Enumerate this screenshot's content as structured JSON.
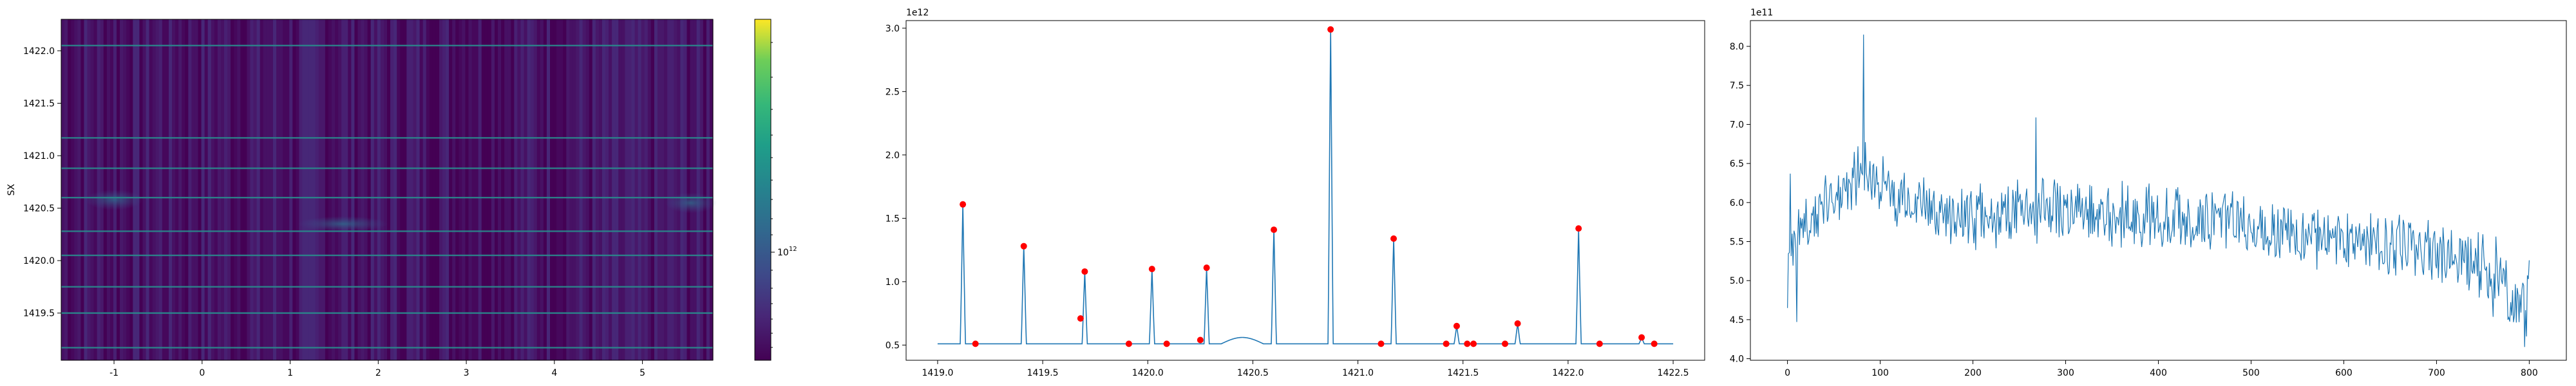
{
  "chart_data": [
    {
      "type": "heatmap",
      "ylabel": "SX",
      "xlim": [
        -1.6,
        5.8
      ],
      "ylim": [
        1419.05,
        1422.3
      ],
      "xticks": [
        -1,
        0,
        1,
        2,
        3,
        4,
        5
      ],
      "yticks": [
        1419.5,
        1420.0,
        1420.5,
        1421.0,
        1421.5,
        1422.0
      ],
      "ytick_labels": [
        "1419.5",
        "1420.0",
        "1420.5",
        "1421.0",
        "1421.5",
        "1422.0"
      ],
      "bright_rows_y": [
        1419.17,
        1419.5,
        1419.75,
        1420.05,
        1420.28,
        1420.6,
        1420.88,
        1421.17,
        1422.05
      ],
      "colormap": "viridis",
      "colorbar": {
        "scale": "log",
        "tick_label": "10",
        "tick_exponent": "12"
      }
    },
    {
      "type": "line",
      "offset_label": "1e12",
      "xlim": [
        1418.85,
        1422.65
      ],
      "ylim": [
        0.38,
        3.06
      ],
      "xticks": [
        1419.0,
        1419.5,
        1420.0,
        1420.5,
        1421.0,
        1421.5,
        1422.0,
        1422.5
      ],
      "xtick_labels": [
        "1419.0",
        "1419.5",
        "1420.0",
        "1420.5",
        "1421.0",
        "1421.5",
        "1422.0",
        "1422.5"
      ],
      "yticks": [
        0.5,
        1.0,
        1.5,
        2.0,
        2.5,
        3.0
      ],
      "ytick_labels": [
        "0.5",
        "1.0",
        "1.5",
        "2.0",
        "2.5",
        "3.0"
      ],
      "baseline": 0.51,
      "peaks": [
        {
          "x": 1419.12,
          "y": 1.61
        },
        {
          "x": 1419.41,
          "y": 1.28
        },
        {
          "x": 1419.7,
          "y": 1.08
        },
        {
          "x": 1420.02,
          "y": 1.1
        },
        {
          "x": 1420.28,
          "y": 1.11
        },
        {
          "x": 1420.6,
          "y": 1.41
        },
        {
          "x": 1420.87,
          "y": 2.99
        },
        {
          "x": 1421.17,
          "y": 1.34
        },
        {
          "x": 1421.47,
          "y": 0.65
        },
        {
          "x": 1421.76,
          "y": 0.67
        },
        {
          "x": 1422.05,
          "y": 1.42
        },
        {
          "x": 1422.35,
          "y": 0.56
        }
      ],
      "markers": [
        {
          "x": 1419.12,
          "y": 1.61
        },
        {
          "x": 1419.18,
          "y": 0.51
        },
        {
          "x": 1419.41,
          "y": 1.28
        },
        {
          "x": 1419.68,
          "y": 0.71
        },
        {
          "x": 1419.7,
          "y": 1.08
        },
        {
          "x": 1419.91,
          "y": 0.51
        },
        {
          "x": 1420.02,
          "y": 1.1
        },
        {
          "x": 1420.09,
          "y": 0.51
        },
        {
          "x": 1420.25,
          "y": 0.54
        },
        {
          "x": 1420.28,
          "y": 1.11
        },
        {
          "x": 1420.6,
          "y": 1.41
        },
        {
          "x": 1420.87,
          "y": 2.99
        },
        {
          "x": 1421.11,
          "y": 0.51
        },
        {
          "x": 1421.17,
          "y": 1.34
        },
        {
          "x": 1421.42,
          "y": 0.51
        },
        {
          "x": 1421.47,
          "y": 0.65
        },
        {
          "x": 1421.52,
          "y": 0.51
        },
        {
          "x": 1421.55,
          "y": 0.51
        },
        {
          "x": 1421.7,
          "y": 0.51
        },
        {
          "x": 1421.76,
          "y": 0.67
        },
        {
          "x": 1422.05,
          "y": 1.42
        },
        {
          "x": 1422.15,
          "y": 0.51
        },
        {
          "x": 1422.35,
          "y": 0.56
        },
        {
          "x": 1422.41,
          "y": 0.51
        }
      ],
      "line_color": "#1f77b4",
      "marker_color": "#ff0000"
    },
    {
      "type": "line",
      "offset_label": "1e11",
      "xlim": [
        -40,
        840
      ],
      "ylim": [
        3.98,
        8.33
      ],
      "xticks": [
        0,
        100,
        200,
        300,
        400,
        500,
        600,
        700,
        800
      ],
      "xtick_labels": [
        "0",
        "100",
        "200",
        "300",
        "400",
        "500",
        "600",
        "700",
        "800"
      ],
      "yticks": [
        4.0,
        4.5,
        5.0,
        5.5,
        6.0,
        6.5,
        7.0,
        7.5,
        8.0
      ],
      "ytick_labels": [
        "4.0",
        "4.5",
        "5.0",
        "5.5",
        "6.0",
        "6.5",
        "7.0",
        "7.5",
        "8.0"
      ],
      "series_trend": {
        "x": [
          0,
          30,
          60,
          80,
          100,
          150,
          200,
          300,
          400,
          500,
          600,
          700,
          750,
          780,
          800
        ],
        "y": [
          5.5,
          5.8,
          6.2,
          6.4,
          6.2,
          5.9,
          5.8,
          5.9,
          5.8,
          5.7,
          5.5,
          5.4,
          5.2,
          4.8,
          4.7
        ]
      },
      "noise_amplitude": 0.35,
      "n_points": 800,
      "notable_points": [
        {
          "x": 0,
          "y": 4.65
        },
        {
          "x": 3,
          "y": 6.37
        },
        {
          "x": 10,
          "y": 4.47
        },
        {
          "x": 82,
          "y": 8.15
        },
        {
          "x": 268,
          "y": 7.09
        },
        {
          "x": 795,
          "y": 4.15
        }
      ],
      "line_color": "#1f77b4"
    }
  ]
}
